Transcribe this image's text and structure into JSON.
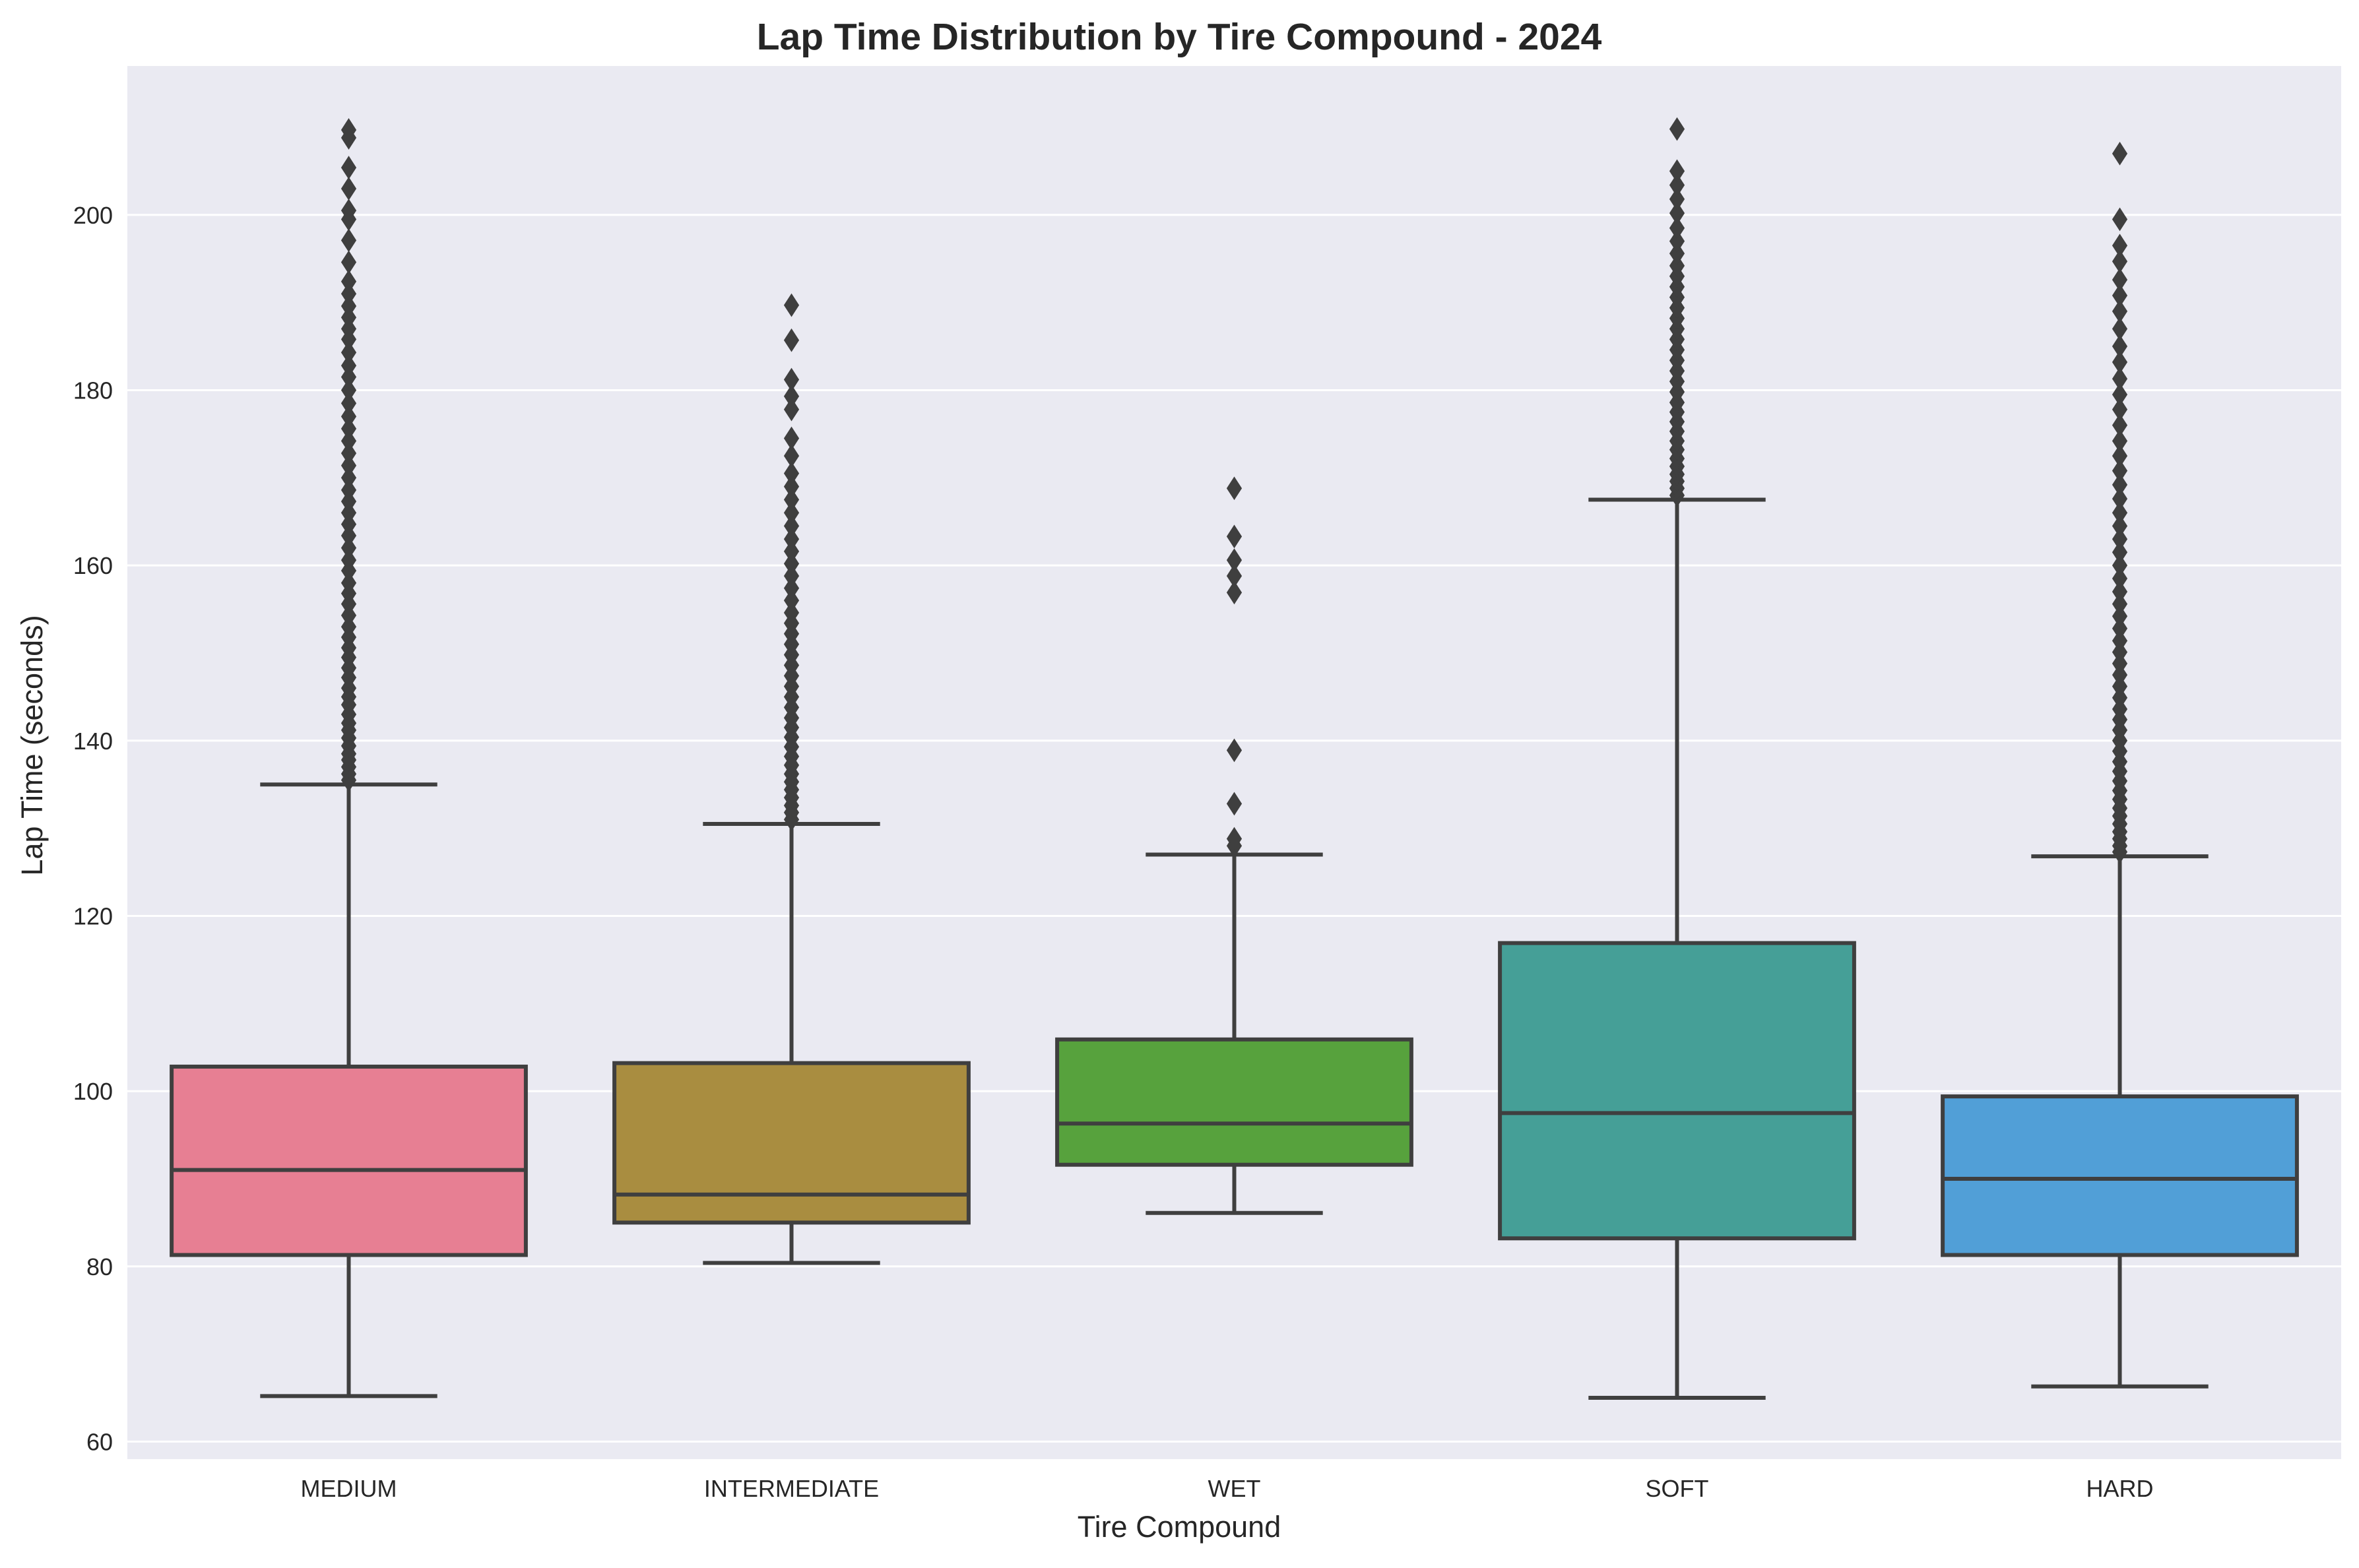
{
  "chart_data": {
    "type": "box",
    "title": "Lap Time Distribution by Tire Compound - 2024",
    "xlabel": "Tire Compound",
    "ylabel": "Lap Time (seconds)",
    "ylim": [
      58,
      217
    ],
    "yticks": [
      60,
      80,
      100,
      120,
      140,
      160,
      180,
      200
    ],
    "grid": true,
    "background": "#eaeaf2",
    "categories": [
      "MEDIUM",
      "INTERMEDIATE",
      "WET",
      "SOFT",
      "HARD"
    ],
    "boxes": [
      {
        "category": "MEDIUM",
        "color": "#e77f93",
        "whisker_low": 65.2,
        "q1": 81.3,
        "median": 91.0,
        "q3": 102.8,
        "whisker_high": 135.0,
        "outliers": [
          135.5,
          136.2,
          137.0,
          137.8,
          138.5,
          139.4,
          140.3,
          141.2,
          142.0,
          143.0,
          144.1,
          145.0,
          146.0,
          147.2,
          148.3,
          149.5,
          150.6,
          151.8,
          153.0,
          154.3,
          155.6,
          156.8,
          158.0,
          159.4,
          160.6,
          162.0,
          163.4,
          164.7,
          166.0,
          167.3,
          168.6,
          170.0,
          171.4,
          172.8,
          174.2,
          175.6,
          177.0,
          178.5,
          180.0,
          181.5,
          182.8,
          184.3,
          185.8,
          187.0,
          188.3,
          189.6,
          191.0,
          192.4,
          194.6,
          197.1,
          199.5,
          200.5,
          203.0,
          205.4,
          208.8,
          209.7
        ]
      },
      {
        "category": "INTERMEDIATE",
        "color": "#a98d40",
        "whisker_low": 80.4,
        "q1": 85.0,
        "median": 88.2,
        "q3": 103.2,
        "whisker_high": 130.5,
        "outliers": [
          131.0,
          131.8,
          132.6,
          133.5,
          134.4,
          135.3,
          136.2,
          137.2,
          138.2,
          139.3,
          140.4,
          141.5,
          142.6,
          143.8,
          145.0,
          146.2,
          147.4,
          148.6,
          149.8,
          151.0,
          152.2,
          153.4,
          154.6,
          156.0,
          157.4,
          158.8,
          160.2,
          161.6,
          163.0,
          164.5,
          166.0,
          167.5,
          169.0,
          170.5,
          172.5,
          174.5,
          177.8,
          179.3,
          181.2,
          185.7,
          189.7
        ]
      },
      {
        "category": "WET",
        "color": "#57a23d",
        "whisker_low": 86.1,
        "q1": 91.6,
        "median": 96.3,
        "q3": 105.9,
        "whisker_high": 127.0,
        "outliers": [
          128.0,
          128.8,
          132.8,
          138.9,
          156.9,
          158.8,
          160.6,
          163.3,
          168.8
        ]
      },
      {
        "category": "SOFT",
        "color": "#459f97",
        "whisker_low": 65.0,
        "q1": 83.2,
        "median": 97.5,
        "q3": 116.9,
        "whisker_high": 167.5,
        "outliers": [
          168.0,
          168.8,
          169.6,
          170.4,
          171.3,
          172.2,
          173.2,
          174.2,
          175.3,
          176.4,
          177.5,
          178.6,
          179.8,
          181.0,
          182.2,
          183.4,
          184.6,
          185.8,
          187.0,
          188.2,
          189.4,
          190.6,
          191.8,
          193.0,
          194.2,
          195.6,
          197.0,
          198.5,
          200.2,
          201.8,
          203.4,
          205.0,
          209.8
        ]
      },
      {
        "category": "HARD",
        "color": "#519fd7",
        "whisker_low": 66.3,
        "q1": 81.3,
        "median": 90.0,
        "q3": 99.4,
        "whisker_high": 126.8,
        "outliers": [
          127.3,
          128.0,
          128.8,
          129.6,
          130.5,
          131.4,
          132.3,
          133.3,
          134.3,
          135.4,
          136.5,
          137.6,
          138.8,
          140.0,
          141.2,
          142.4,
          143.6,
          144.9,
          146.2,
          147.5,
          148.8,
          150.1,
          151.4,
          152.8,
          154.2,
          155.6,
          157.0,
          158.5,
          160.0,
          161.5,
          163.0,
          164.5,
          166.0,
          167.6,
          169.2,
          170.8,
          172.5,
          174.2,
          176.0,
          177.8,
          179.5,
          181.3,
          183.2,
          185.0,
          187.0,
          189.0,
          190.8,
          192.6,
          194.7,
          196.5,
          199.5,
          207.0
        ]
      }
    ]
  }
}
